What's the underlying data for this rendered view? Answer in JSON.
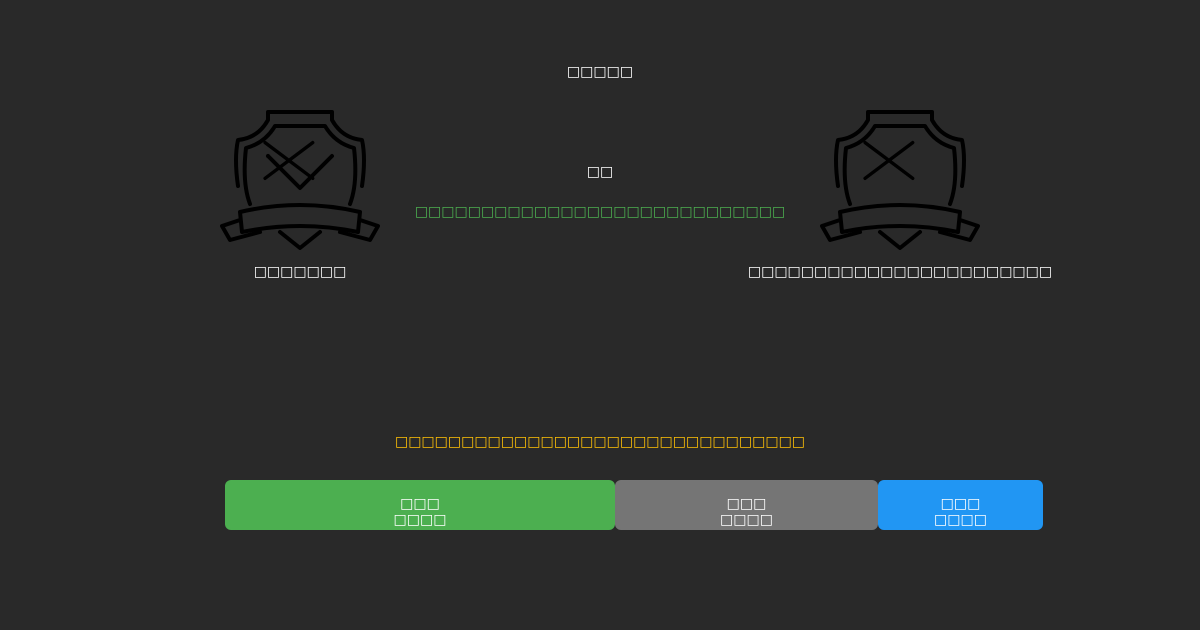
{
  "title": "□□□□□",
  "center_label": "□□",
  "center_message": "□□□□□□□□□□□□□□□□□□□□□□□□□□□□",
  "left_badge": {
    "icon": "shield-x-icon",
    "label": "□□□□□□□"
  },
  "right_badge": {
    "icon": "shield-x-icon",
    "label": "□□□□□□□□□□□□□□□□□□□□□□□"
  },
  "warning": "□□□□□□□□□□□□□□□□□□□□□□□□□□□□□□□",
  "buttons": [
    {
      "line1": "□□□",
      "line2": "□□□□",
      "color": "#4caf50"
    },
    {
      "line1": "□□□",
      "line2": "□□□□",
      "color": "#757575"
    },
    {
      "line1": "□□□",
      "line2": "□□□□",
      "color": "#2196f3"
    }
  ],
  "colors": {
    "background": "#292929",
    "success_text": "#4caf50",
    "warning_text": "#ffc107"
  }
}
